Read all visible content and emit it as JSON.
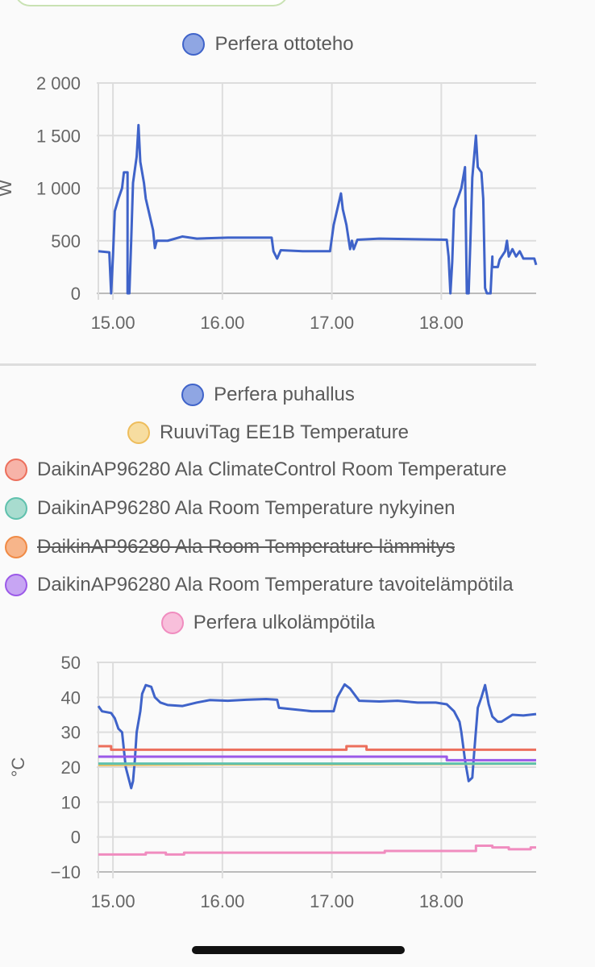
{
  "chart_data": [
    {
      "type": "line",
      "ylabel": "W",
      "ylim": [
        0,
        2000
      ],
      "yticks": [
        0,
        500,
        1000,
        1500,
        2000
      ],
      "ytick_labels": [
        "0",
        "500",
        "1 000",
        "1 500",
        "2 000"
      ],
      "xlim": [
        "14:52",
        "18:52"
      ],
      "xticks": [
        "15:00",
        "16:00",
        "17:00",
        "18:00"
      ],
      "xtick_labels": [
        "15.00",
        "16.00",
        "17.00",
        "18.00"
      ],
      "grid": true,
      "legend_placement": "top",
      "series": [
        {
          "name": "Perfera ottoteho",
          "color": "#3f63c9",
          "fill": "#8fa6e3",
          "hidden": false,
          "points": [
            [
              "14:52",
              400
            ],
            [
              "14:58",
              390
            ],
            [
              "14:59",
              0
            ],
            [
              "15:00",
              350
            ],
            [
              "15:01",
              780
            ],
            [
              "15:03",
              900
            ],
            [
              "15:05",
              1000
            ],
            [
              "15:06",
              1150
            ],
            [
              "15:08",
              1150
            ],
            [
              "15:08",
              0
            ],
            [
              "15:09",
              0
            ],
            [
              "15:10",
              500
            ],
            [
              "15:11",
              1050
            ],
            [
              "15:13",
              1300
            ],
            [
              "15:14",
              1600
            ],
            [
              "15:15",
              1250
            ],
            [
              "15:17",
              1050
            ],
            [
              "15:18",
              900
            ],
            [
              "15:20",
              750
            ],
            [
              "15:22",
              600
            ],
            [
              "15:23",
              430
            ],
            [
              "15:24",
              500
            ],
            [
              "15:30",
              500
            ],
            [
              "15:38",
              540
            ],
            [
              "15:46",
              520
            ],
            [
              "16:03",
              530
            ],
            [
              "16:27",
              530
            ],
            [
              "16:28",
              400
            ],
            [
              "16:30",
              330
            ],
            [
              "16:32",
              410
            ],
            [
              "16:44",
              400
            ],
            [
              "16:59",
              400
            ],
            [
              "17:01",
              650
            ],
            [
              "17:05",
              950
            ],
            [
              "17:06",
              800
            ],
            [
              "17:08",
              650
            ],
            [
              "17:10",
              420
            ],
            [
              "17:11",
              500
            ],
            [
              "17:12",
              420
            ],
            [
              "17:14",
              510
            ],
            [
              "17:26",
              520
            ],
            [
              "18:03",
              510
            ],
            [
              "18:04",
              350
            ],
            [
              "18:05",
              0
            ],
            [
              "18:06",
              300
            ],
            [
              "18:07",
              800
            ],
            [
              "18:11",
              1000
            ],
            [
              "18:13",
              1200
            ],
            [
              "18:14",
              0
            ],
            [
              "18:15",
              0
            ],
            [
              "18:16",
              520
            ],
            [
              "18:17",
              1100
            ],
            [
              "18:19",
              1500
            ],
            [
              "18:20",
              1200
            ],
            [
              "18:22",
              1150
            ],
            [
              "18:23",
              900
            ],
            [
              "18:24",
              50
            ],
            [
              "18:25",
              0
            ],
            [
              "18:27",
              0
            ],
            [
              "18:28",
              350
            ],
            [
              "18:28",
              250
            ],
            [
              "18:31",
              250
            ],
            [
              "18:32",
              320
            ],
            [
              "18:35",
              400
            ],
            [
              "18:36",
              500
            ],
            [
              "18:37",
              350
            ],
            [
              "18:39",
              420
            ],
            [
              "18:41",
              350
            ],
            [
              "18:43",
              400
            ],
            [
              "18:45",
              330
            ],
            [
              "18:51",
              330
            ],
            [
              "18:52",
              270
            ]
          ]
        }
      ]
    },
    {
      "type": "line",
      "ylabel": "°C",
      "ylim": [
        -10,
        50
      ],
      "yticks": [
        -10,
        0,
        10,
        20,
        30,
        40,
        50
      ],
      "ytick_labels": [
        "−10",
        "0",
        "10",
        "20",
        "30",
        "40",
        "50"
      ],
      "xlim": [
        "14:52",
        "18:52"
      ],
      "xticks": [
        "15:00",
        "16:00",
        "17:00",
        "18:00"
      ],
      "xtick_labels": [
        "15.00",
        "16.00",
        "17.00",
        "18.00"
      ],
      "grid": true,
      "legend_placement": "top",
      "series": [
        {
          "name": "Perfera puhallus",
          "color": "#3f63c9",
          "fill": "#8fa6e3",
          "hidden": false,
          "legend_align": "center",
          "points": [
            [
              "14:52",
              37.5
            ],
            [
              "14:54",
              36
            ],
            [
              "14:59",
              35.5
            ],
            [
              "15:01",
              34
            ],
            [
              "15:03",
              31
            ],
            [
              "15:05",
              30
            ],
            [
              "15:06",
              25
            ],
            [
              "15:07",
              20
            ],
            [
              "15:09",
              16
            ],
            [
              "15:10",
              14
            ],
            [
              "15:11",
              16
            ],
            [
              "15:12",
              22
            ],
            [
              "15:13",
              30
            ],
            [
              "15:15",
              36
            ],
            [
              "15:16",
              41
            ],
            [
              "15:18",
              43.5
            ],
            [
              "15:21",
              43
            ],
            [
              "15:23",
              40
            ],
            [
              "15:26",
              38.5
            ],
            [
              "15:30",
              37.8
            ],
            [
              "15:38",
              37.5
            ],
            [
              "15:46",
              38.5
            ],
            [
              "15:53",
              39.2
            ],
            [
              "16:03",
              39
            ],
            [
              "16:13",
              39.3
            ],
            [
              "16:24",
              39.5
            ],
            [
              "16:30",
              39.3
            ],
            [
              "16:31",
              37
            ],
            [
              "16:40",
              36.5
            ],
            [
              "16:49",
              36
            ],
            [
              "17:01",
              36
            ],
            [
              "17:03",
              40
            ],
            [
              "17:07",
              43.7
            ],
            [
              "17:10",
              42.5
            ],
            [
              "17:15",
              39
            ],
            [
              "17:26",
              38.8
            ],
            [
              "17:36",
              39
            ],
            [
              "17:47",
              38.5
            ],
            [
              "17:57",
              38.5
            ],
            [
              "18:03",
              38
            ],
            [
              "18:07",
              36
            ],
            [
              "18:10",
              33
            ],
            [
              "18:11",
              30
            ],
            [
              "18:13",
              22
            ],
            [
              "18:15",
              16
            ],
            [
              "18:17",
              17
            ],
            [
              "18:18",
              24
            ],
            [
              "18:20",
              37
            ],
            [
              "18:22",
              40
            ],
            [
              "18:24",
              43.5
            ],
            [
              "18:26",
              38
            ],
            [
              "18:28",
              34.5
            ],
            [
              "18:31",
              33
            ],
            [
              "18:33",
              33
            ],
            [
              "18:39",
              35
            ],
            [
              "18:45",
              34.8
            ],
            [
              "18:52",
              35.2
            ]
          ]
        },
        {
          "name": "RuuviTag EE1B Temperature",
          "color": "#eebd5c",
          "fill": "#f7dda0",
          "hidden": false,
          "legend_align": "center",
          "points": [
            [
              "14:52",
              20.6
            ],
            [
              "16:00",
              20.8
            ],
            [
              "17:00",
              20.8
            ],
            [
              "18:00",
              20.9
            ],
            [
              "18:52",
              21
            ]
          ]
        },
        {
          "name": "DaikinAP96280 Ala ClimateControl Room Temperature",
          "color": "#ec6f5c",
          "fill": "#f7b3a8",
          "hidden": false,
          "step": true,
          "points": [
            [
              "14:52",
              26
            ],
            [
              "14:59",
              25
            ],
            [
              "17:08",
              26
            ],
            [
              "17:19",
              25
            ],
            [
              "18:52",
              25
            ]
          ]
        },
        {
          "name": "DaikinAP96280 Ala Room Temperature nykyinen",
          "color": "#5fc1ad",
          "fill": "#a8dccf",
          "hidden": false,
          "step": true,
          "points": [
            [
              "14:52",
              21
            ],
            [
              "18:52",
              21
            ]
          ]
        },
        {
          "name": "DaikinAP96280 Ala Room Temperature lämmitys",
          "color": "#f08a45",
          "fill": "#f7b58a",
          "hidden": true,
          "points": []
        },
        {
          "name": "DaikinAP96280 Ala Room Temperature tavoitelämpötila",
          "color": "#9b59e8",
          "fill": "#c7a5f3",
          "hidden": false,
          "step": true,
          "points": [
            [
              "14:52",
              23
            ],
            [
              "18:03",
              22
            ],
            [
              "18:52",
              22
            ]
          ]
        },
        {
          "name": "Perfera ulkolämpötila",
          "color": "#f08cbf",
          "fill": "#f8bfdb",
          "hidden": false,
          "step": true,
          "legend_align": "center",
          "points": [
            [
              "14:52",
              -5
            ],
            [
              "15:18",
              -4.5
            ],
            [
              "15:29",
              -5
            ],
            [
              "15:39",
              -4.5
            ],
            [
              "17:29",
              -4
            ],
            [
              "18:19",
              -2.5
            ],
            [
              "18:28",
              -3
            ],
            [
              "18:37",
              -3.5
            ],
            [
              "18:49",
              -3
            ],
            [
              "18:52",
              -3
            ]
          ]
        }
      ]
    }
  ]
}
